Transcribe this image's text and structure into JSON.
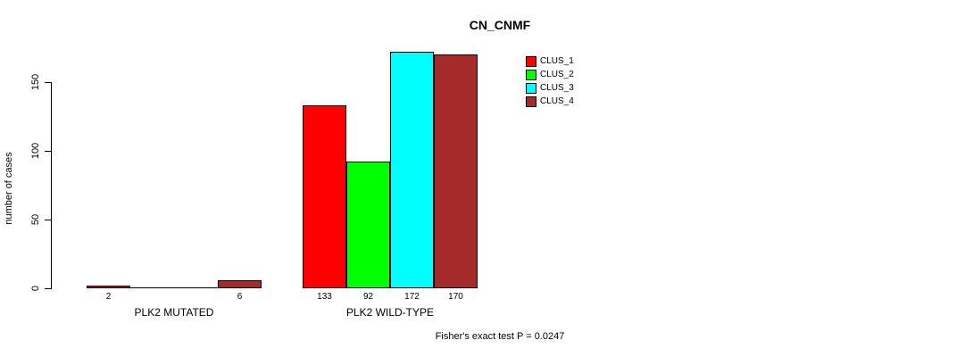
{
  "chart_data": {
    "type": "bar",
    "title": "CN_CNMF",
    "ylabel": "number of cases",
    "xlabel": "",
    "ylim": [
      0,
      175
    ],
    "yticks": [
      0,
      50,
      100,
      150
    ],
    "grid": false,
    "legend_position": "top-right",
    "series": [
      {
        "name": "CLUS_1",
        "color": "#ff0000"
      },
      {
        "name": "CLUS_2",
        "color": "#00ff00"
      },
      {
        "name": "CLUS_3",
        "color": "#00ffff"
      },
      {
        "name": "CLUS_4",
        "color": "#a52a2a"
      }
    ],
    "groups": [
      {
        "label": "PLK2 MUTATED",
        "values": [
          2,
          0,
          0,
          6
        ],
        "bar_labels": [
          "2",
          "",
          "",
          "6"
        ]
      },
      {
        "label": "PLK2 WILD-TYPE",
        "values": [
          133,
          92,
          172,
          170
        ],
        "bar_labels": [
          "133",
          "92",
          "172",
          "170"
        ]
      }
    ],
    "annotation": "Fisher's exact test P = 0.0247"
  },
  "colors": {
    "background": "#ffffff",
    "axis": "#000000",
    "bar_border": "#000000",
    "text": "#000000"
  }
}
